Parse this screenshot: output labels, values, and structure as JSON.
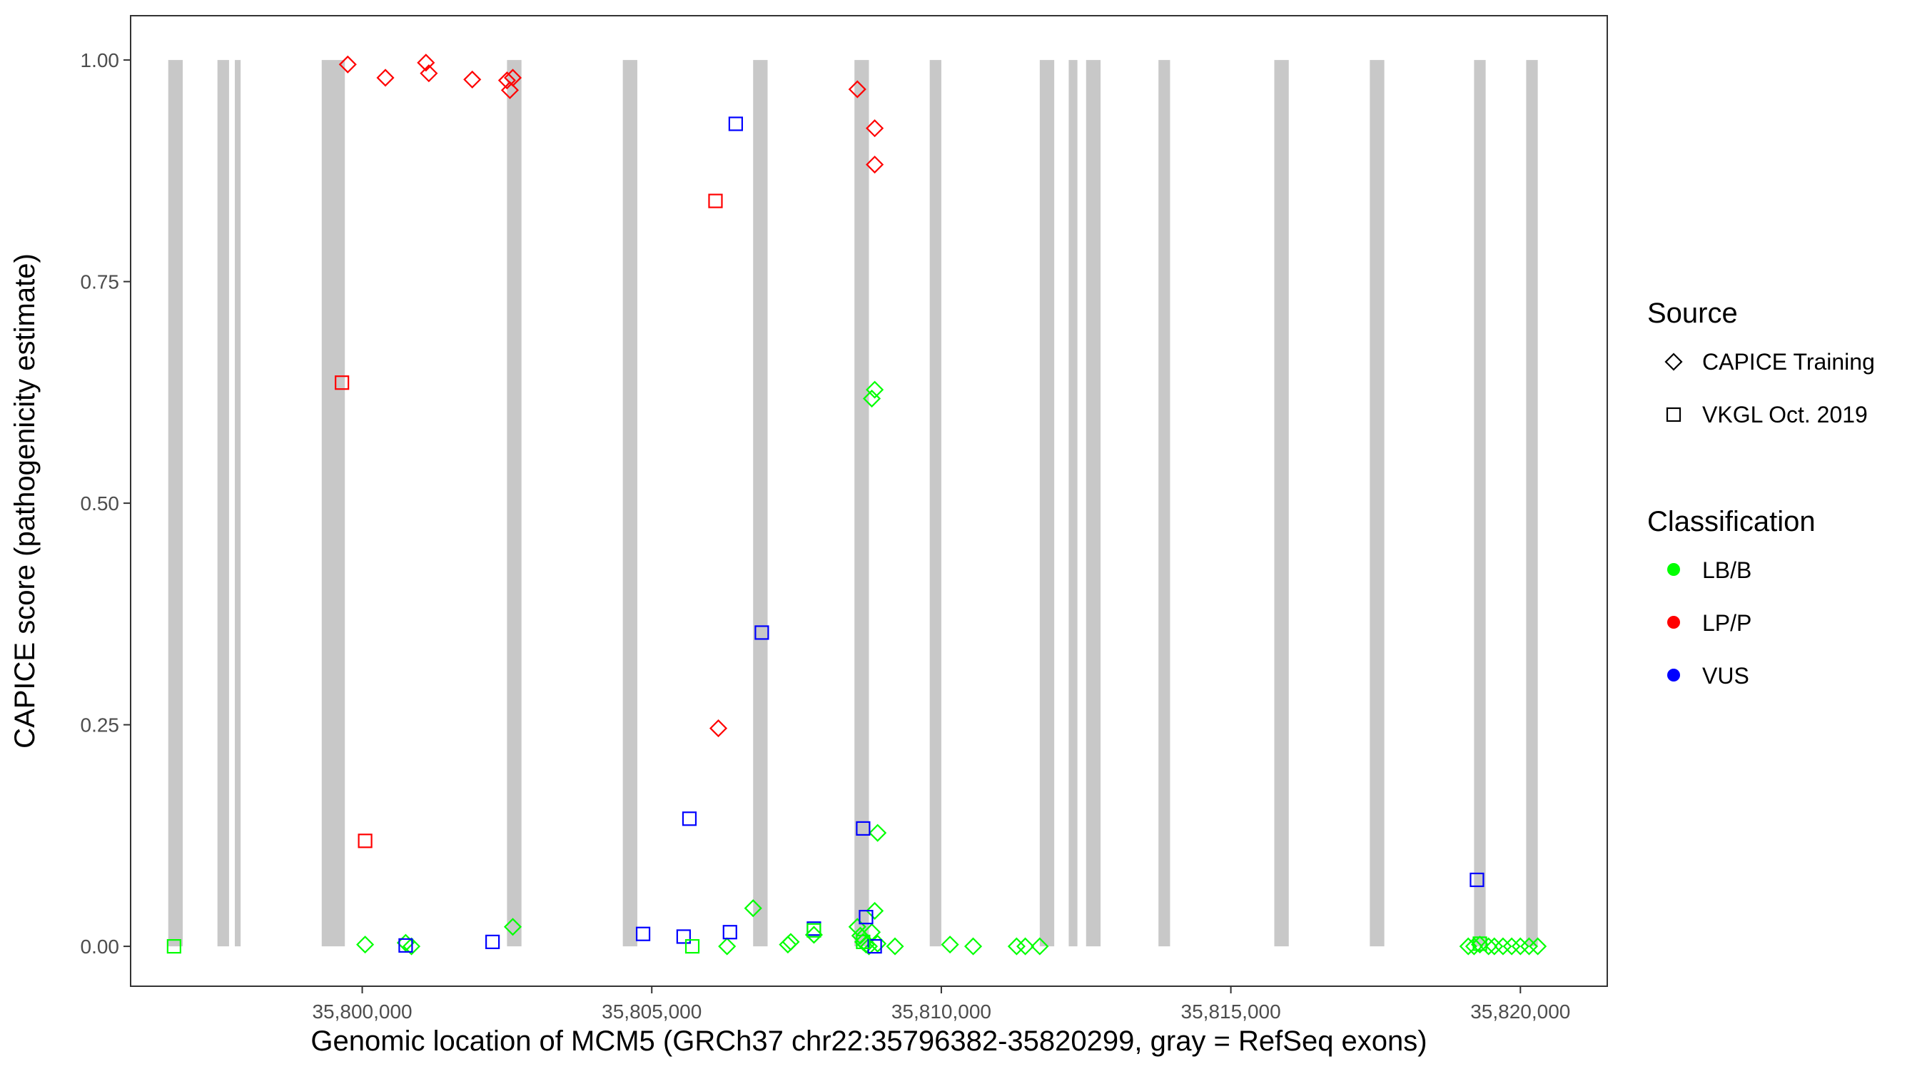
{
  "chart_data": {
    "type": "scatter",
    "xlabel": "Genomic location of MCM5 (GRCh37 chr22:35796382-35820299, gray = RefSeq exons)",
    "ylabel": "CAPICE score (pathogenicity estimate)",
    "xlim": [
      35796000,
      35821500
    ],
    "ylim": [
      -0.045,
      1.05
    ],
    "x_ticks": [
      35800000,
      35805000,
      35810000,
      35815000,
      35820000
    ],
    "x_tick_labels": [
      "35,800,000",
      "35,805,000",
      "35,810,000",
      "35,815,000",
      "35,820,000"
    ],
    "y_ticks": [
      0,
      0.25,
      0.5,
      0.75,
      1
    ],
    "y_tick_labels": [
      "0.00",
      "0.25",
      "0.50",
      "0.75",
      "1.00"
    ],
    "grid": false,
    "legend_position": "right",
    "exons": [
      [
        35796650,
        35796900
      ],
      [
        35797500,
        35797700
      ],
      [
        35797800,
        35797900
      ],
      [
        35799300,
        35799700
      ],
      [
        35802500,
        35802750
      ],
      [
        35804500,
        35804750
      ],
      [
        35806750,
        35807000
      ],
      [
        35808500,
        35808750
      ],
      [
        35809800,
        35810000
      ],
      [
        35811700,
        35811950
      ],
      [
        35812200,
        35812350
      ],
      [
        35812500,
        35812750
      ],
      [
        35813750,
        35813950
      ],
      [
        35815750,
        35816000
      ],
      [
        35817400,
        35817650
      ],
      [
        35819200,
        35819400
      ],
      [
        35820100,
        35820300
      ]
    ],
    "colors": {
      "LB/B": "#00ff00",
      "LP/P": "#ff0000",
      "VUS": "#0000ff"
    },
    "legend": {
      "source_title": "Source",
      "source_items": [
        {
          "label": "CAPICE Training",
          "shape": "diamond"
        },
        {
          "label": "VKGL Oct. 2019",
          "shape": "square"
        }
      ],
      "class_title": "Classification",
      "class_items": [
        {
          "label": "LB/B",
          "color": "#00ff00"
        },
        {
          "label": "LP/P",
          "color": "#ff0000"
        },
        {
          "label": "VUS",
          "color": "#0000ff"
        }
      ]
    },
    "series": [
      {
        "source": "CAPICE Training",
        "shape": "diamond",
        "classification": "LP/P",
        "points": [
          [
            35799750,
            0.995
          ],
          [
            35800400,
            0.98
          ],
          [
            35801100,
            0.997
          ],
          [
            35801150,
            0.985
          ],
          [
            35801900,
            0.978
          ],
          [
            35802500,
            0.977
          ],
          [
            35802600,
            0.98
          ],
          [
            35802550,
            0.966
          ],
          [
            35806150,
            0.246
          ],
          [
            35808550,
            0.967
          ],
          [
            35808850,
            0.923
          ],
          [
            35808850,
            0.882
          ]
        ]
      },
      {
        "source": "CAPICE Training",
        "shape": "diamond",
        "classification": "LB/B",
        "points": [
          [
            35800050,
            0.002
          ],
          [
            35800750,
            0.004
          ],
          [
            35800850,
            0.0
          ],
          [
            35802600,
            0.022
          ],
          [
            35806300,
            0.0
          ],
          [
            35806750,
            0.043
          ],
          [
            35807350,
            0.002
          ],
          [
            35807400,
            0.005
          ],
          [
            35807800,
            0.013
          ],
          [
            35808550,
            0.022
          ],
          [
            35808600,
            0.012
          ],
          [
            35808650,
            0.005
          ],
          [
            35808700,
            0.002
          ],
          [
            35808750,
            0.0
          ],
          [
            35808800,
            0.016
          ],
          [
            35808850,
            0.04
          ],
          [
            35808900,
            0.003
          ],
          [
            35809200,
            0.0
          ],
          [
            35808850,
            0.628
          ],
          [
            35808800,
            0.618
          ],
          [
            35808900,
            0.128
          ],
          [
            35810150,
            0.002
          ],
          [
            35810550,
            0.0
          ],
          [
            35811300,
            0.0
          ],
          [
            35811450,
            0.0
          ],
          [
            35811700,
            0.0
          ],
          [
            35819100,
            0.0
          ],
          [
            35819200,
            0.0
          ],
          [
            35819300,
            0.002
          ],
          [
            35819450,
            0.0
          ],
          [
            35819550,
            0.0
          ],
          [
            35819700,
            0.0
          ],
          [
            35819850,
            0.0
          ],
          [
            35820000,
            0.0
          ],
          [
            35820150,
            0.0
          ],
          [
            35820300,
            0.0
          ]
        ]
      },
      {
        "source": "VKGL Oct. 2019",
        "shape": "square",
        "classification": "LP/P",
        "points": [
          [
            35799650,
            0.636
          ],
          [
            35800050,
            0.119
          ],
          [
            35806100,
            0.841
          ]
        ]
      },
      {
        "source": "VKGL Oct. 2019",
        "shape": "square",
        "classification": "VUS",
        "points": [
          [
            35800750,
            0.001
          ],
          [
            35802250,
            0.005
          ],
          [
            35804850,
            0.014
          ],
          [
            35805550,
            0.011
          ],
          [
            35805650,
            0.144
          ],
          [
            35806350,
            0.016
          ],
          [
            35806450,
            0.928
          ],
          [
            35806900,
            0.354
          ],
          [
            35807800,
            0.02
          ],
          [
            35808700,
            0.033
          ],
          [
            35808650,
            0.133
          ],
          [
            35808850,
            0.0
          ],
          [
            35819250,
            0.075
          ]
        ]
      },
      {
        "source": "VKGL Oct. 2019",
        "shape": "square",
        "classification": "LB/B",
        "points": [
          [
            35796750,
            0.0
          ],
          [
            35805700,
            0.0
          ],
          [
            35807800,
            0.018
          ],
          [
            35808650,
            0.005
          ],
          [
            35819300,
            0.003
          ]
        ]
      }
    ]
  }
}
